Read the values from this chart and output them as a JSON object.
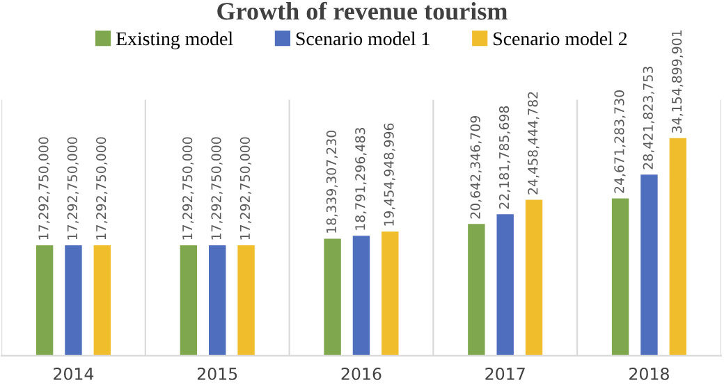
{
  "chart_data": {
    "type": "bar",
    "title": "Growth of revenue tourism",
    "categories": [
      "2014",
      "2015",
      "2016",
      "2017",
      "2018"
    ],
    "series": [
      {
        "name": "Existing model",
        "color": "#7fa84e",
        "values": [
          17292750000,
          17292750000,
          18339307230,
          20642346709,
          24671283730
        ],
        "value_labels": [
          "17,292,750,000",
          "17,292,750,000",
          "18,339,307,230",
          "20,642,346,709",
          "24,671,283,730"
        ]
      },
      {
        "name": "Scenario model 1",
        "color": "#4f6fbe",
        "values": [
          17292750000,
          17292750000,
          18791296483,
          22181785698,
          28421823753
        ],
        "value_labels": [
          "17,292,750,000",
          "17,292,750,000",
          "18,791,296,483",
          "22,181,785,698",
          "28,421,823,753"
        ]
      },
      {
        "name": "Scenario model 2",
        "color": "#f0be2d",
        "values": [
          17292750000,
          17292750000,
          19454948996,
          24458444782,
          34154899901
        ],
        "value_labels": [
          "17,292,750,000",
          "17,292,750,000",
          "19,454,948,996",
          "24,458,444,782",
          "34,154,899,901"
        ]
      }
    ],
    "legend": "top",
    "grid": "x"
  }
}
